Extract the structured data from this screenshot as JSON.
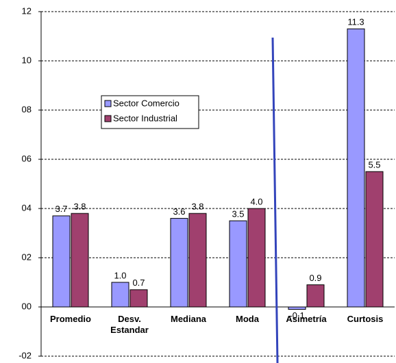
{
  "chart_data": {
    "type": "bar",
    "categories": [
      "Promedio",
      "Desv. Estandar",
      "Mediana",
      "Moda",
      "Asimetría",
      "Curtosis"
    ],
    "series": [
      {
        "name": "Sector Comercio",
        "color": "#9999ff",
        "values": [
          3.7,
          1.0,
          3.6,
          3.5,
          -0.1,
          11.3
        ],
        "value_labels": [
          "3.7",
          "1.0",
          "3.6",
          "3.5",
          "-0.1",
          "11.3"
        ]
      },
      {
        "name": "Sector Industrial",
        "color": "#a0406e",
        "values": [
          3.8,
          0.7,
          3.8,
          4.0,
          0.9,
          5.5
        ],
        "value_labels": [
          "3.8",
          "0.7",
          "3.8",
          "4.0",
          "0.9",
          "5.5"
        ]
      }
    ],
    "ylim": [
      -2,
      12
    ],
    "yticks": [
      {
        "value": -2,
        "label": "-02"
      },
      {
        "value": 0,
        "label": "00"
      },
      {
        "value": 2,
        "label": "02"
      },
      {
        "value": 4,
        "label": "04"
      },
      {
        "value": 6,
        "label": "06"
      },
      {
        "value": 8,
        "label": "08"
      },
      10,
      12
    ],
    "grid": true
  }
}
